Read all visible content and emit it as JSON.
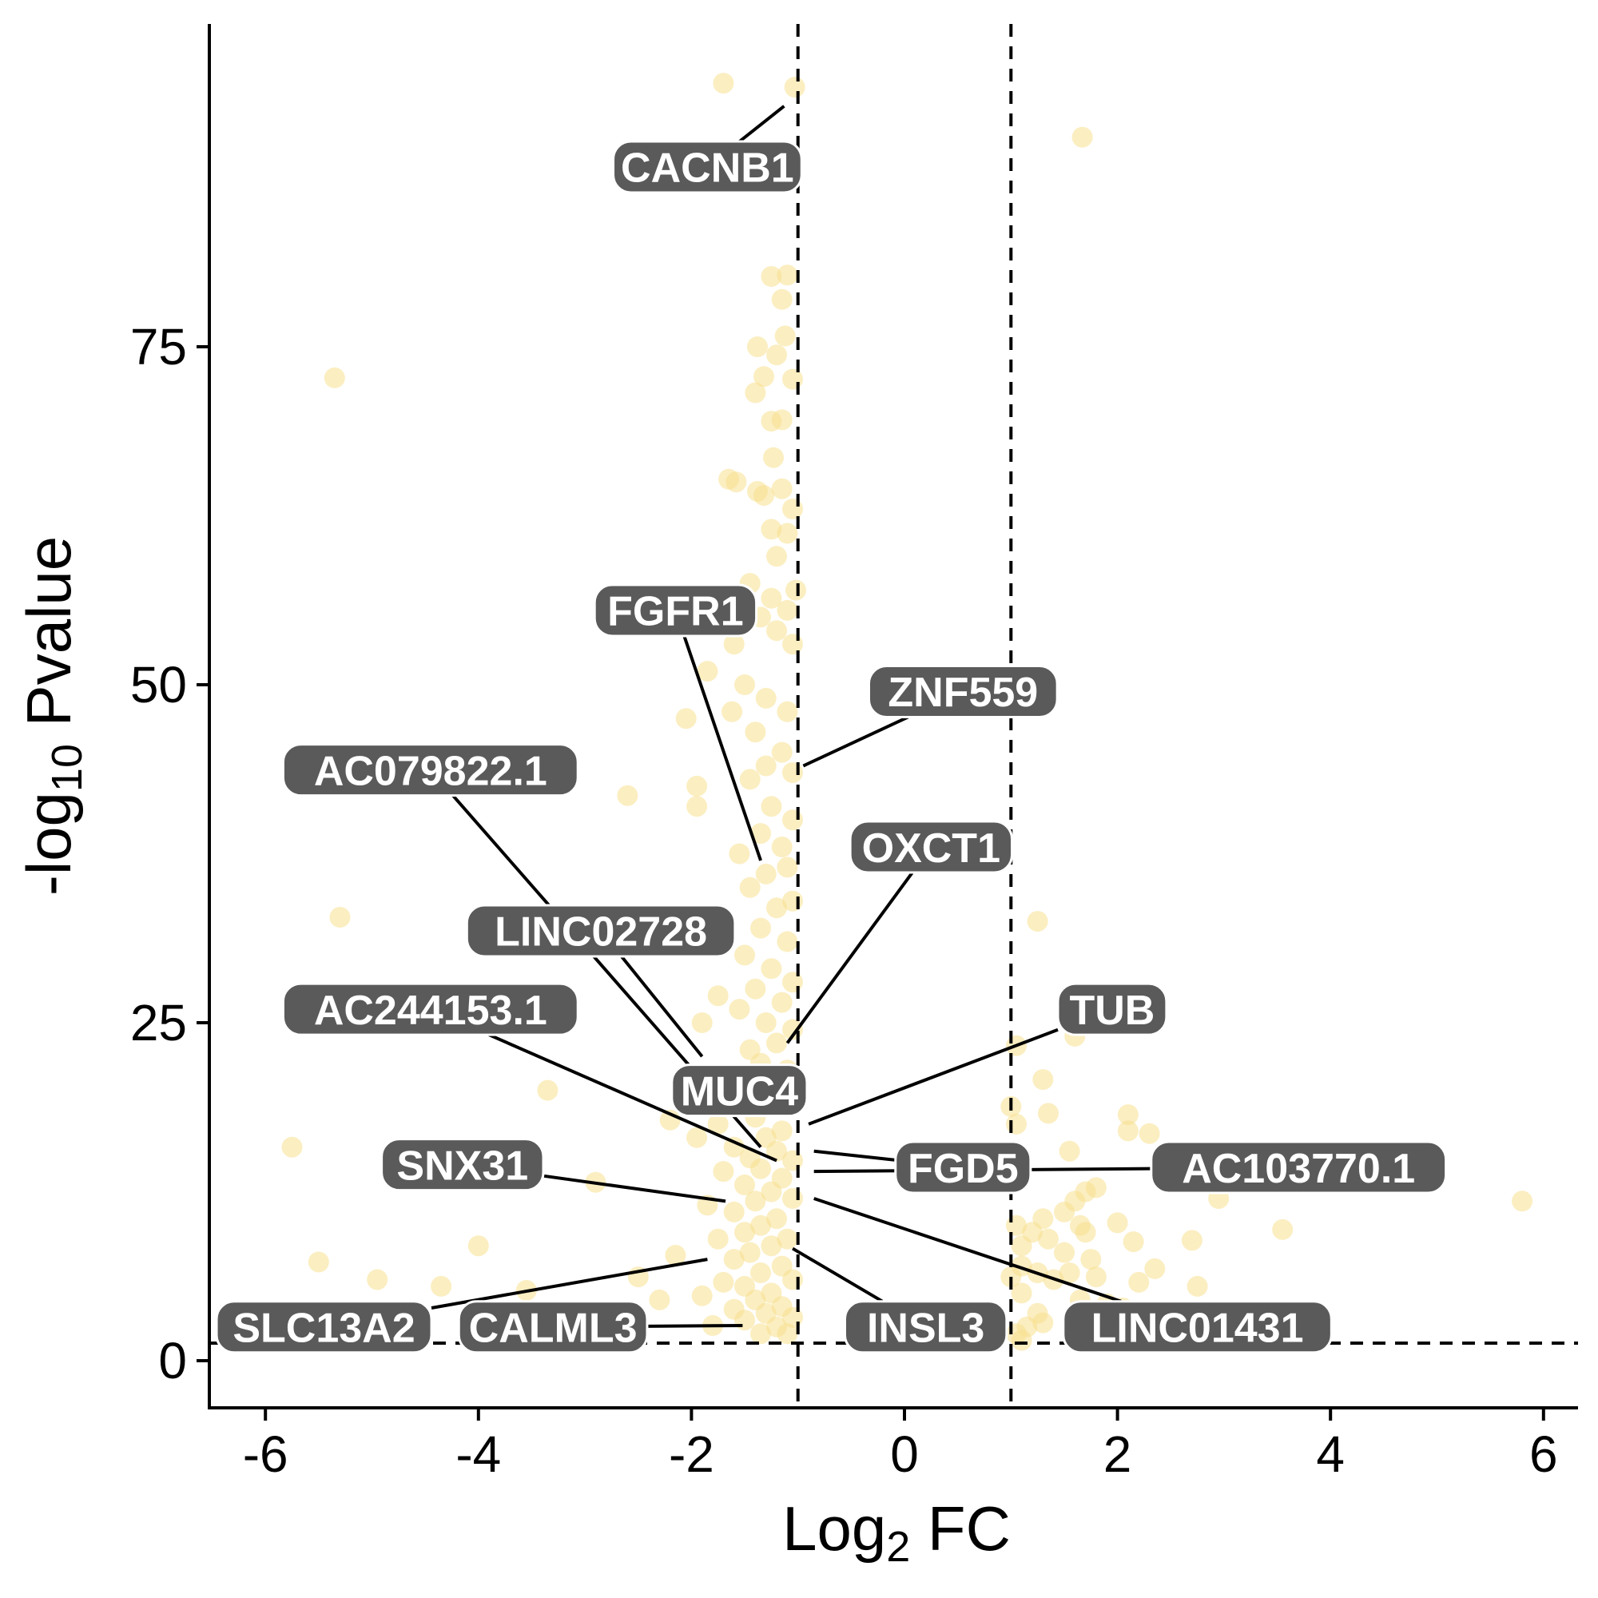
{
  "chart_data": {
    "type": "scatter",
    "title": "",
    "xlabel": {
      "base": "Log",
      "sub": "2",
      "rest": " FC"
    },
    "ylabel": {
      "prefix": "-log",
      "sub": "10",
      "rest": " Pvalue"
    },
    "xlim": [
      -6.5,
      6.4
    ],
    "ylim": [
      -3.5,
      98
    ],
    "xticks": [
      -6,
      -4,
      -2,
      0,
      2,
      4,
      6
    ],
    "yticks": [
      0,
      25,
      50,
      75
    ],
    "point_color": "#f8e08e",
    "label_fill": "#5a5a5a",
    "label_text_color": "#ffffff",
    "grid": false,
    "legend": "none",
    "thresholds": {
      "x": [
        -1,
        1
      ],
      "y": 1.3
    },
    "points": [
      [
        -1.7,
        94.5
      ],
      [
        -1.03,
        94.2
      ],
      [
        1.67,
        90.5
      ],
      [
        -5.35,
        72.7
      ],
      [
        -5.3,
        32.8
      ],
      [
        -1.25,
        80.2
      ],
      [
        -1.1,
        80.3
      ],
      [
        -1.15,
        78.5
      ],
      [
        -1.12,
        75.8
      ],
      [
        -1.38,
        75.0
      ],
      [
        -1.2,
        74.4
      ],
      [
        -1.32,
        72.8
      ],
      [
        -1.05,
        72.6
      ],
      [
        -1.4,
        71.6
      ],
      [
        -1.25,
        69.5
      ],
      [
        -1.15,
        69.6
      ],
      [
        -1.23,
        66.8
      ],
      [
        -1.65,
        65.2
      ],
      [
        -1.58,
        65.0
      ],
      [
        -1.38,
        64.3
      ],
      [
        -1.32,
        64.0
      ],
      [
        -1.15,
        64.5
      ],
      [
        -1.05,
        63.0
      ],
      [
        -1.25,
        61.5
      ],
      [
        -1.1,
        61.2
      ],
      [
        -1.2,
        59.5
      ],
      [
        -1.45,
        57.5
      ],
      [
        -1.02,
        57.0
      ],
      [
        -1.25,
        56.4
      ],
      [
        -1.1,
        55.5
      ],
      [
        -1.35,
        55.0
      ],
      [
        -1.2,
        54.0
      ],
      [
        -1.05,
        53.0
      ],
      [
        -1.6,
        53.0
      ],
      [
        -1.85,
        51.0
      ],
      [
        -1.5,
        50.0
      ],
      [
        -1.3,
        49.0
      ],
      [
        -1.1,
        48.0
      ],
      [
        -1.62,
        48.0
      ],
      [
        -2.05,
        47.5
      ],
      [
        -1.4,
        46.5
      ],
      [
        -1.15,
        45.0
      ],
      [
        -1.3,
        44.0
      ],
      [
        -1.05,
        43.5
      ],
      [
        -1.45,
        43.0
      ],
      [
        -1.95,
        42.5
      ],
      [
        -2.6,
        41.8
      ],
      [
        -1.95,
        41.0
      ],
      [
        -1.25,
        41.0
      ],
      [
        -1.05,
        40.0
      ],
      [
        -1.35,
        39.0
      ],
      [
        -1.15,
        38.0
      ],
      [
        -1.55,
        37.5
      ],
      [
        -1.1,
        36.5
      ],
      [
        -1.3,
        36.0
      ],
      [
        -1.45,
        35.0
      ],
      [
        -1.05,
        34.0
      ],
      [
        -1.2,
        33.5
      ],
      [
        -1.85,
        33.0
      ],
      [
        -1.9,
        31.5
      ],
      [
        -1.35,
        32.0
      ],
      [
        -1.1,
        31.0
      ],
      [
        -1.5,
        30.0
      ],
      [
        -1.25,
        29.0
      ],
      [
        -1.05,
        28.0
      ],
      [
        -1.4,
        27.5
      ],
      [
        -1.75,
        27.0
      ],
      [
        -1.15,
        26.5
      ],
      [
        -3.45,
        26.8
      ],
      [
        -3.7,
        25.2
      ],
      [
        -1.55,
        26.0
      ],
      [
        -1.3,
        25.0
      ],
      [
        -1.05,
        24.5
      ],
      [
        -1.9,
        25.0
      ],
      [
        -1.2,
        23.5
      ],
      [
        -1.45,
        23.0
      ],
      [
        -1.35,
        22.0
      ],
      [
        -1.1,
        21.5
      ],
      [
        -1.6,
        21.0
      ],
      [
        -1.85,
        20.5
      ],
      [
        -1.25,
        20.0
      ],
      [
        -3.35,
        20.0
      ],
      [
        -1.05,
        19.5
      ],
      [
        -1.5,
        19.0
      ],
      [
        -2.2,
        17.8
      ],
      [
        -1.4,
        18.0
      ],
      [
        -1.75,
        17.5
      ],
      [
        -1.15,
        17.0
      ],
      [
        -1.3,
        16.5
      ],
      [
        -1.95,
        16.5
      ],
      [
        -5.75,
        15.8
      ],
      [
        -1.6,
        15.8
      ],
      [
        -1.2,
        15.5
      ],
      [
        -1.45,
        15.0
      ],
      [
        -1.05,
        14.8
      ],
      [
        -1.35,
        14.2
      ],
      [
        -1.7,
        14.0
      ],
      [
        -1.15,
        13.5
      ],
      [
        -2.9,
        13.2
      ],
      [
        -1.5,
        13.0
      ],
      [
        -1.25,
        12.5
      ],
      [
        -1.05,
        12.0
      ],
      [
        -1.4,
        11.8
      ],
      [
        -1.85,
        11.5
      ],
      [
        -1.6,
        11.0
      ],
      [
        -1.2,
        10.5
      ],
      [
        -1.35,
        10.0
      ],
      [
        -1.5,
        9.5
      ],
      [
        -1.1,
        9.0
      ],
      [
        -1.75,
        9.0
      ],
      [
        -4.0,
        8.5
      ],
      [
        -1.25,
        8.5
      ],
      [
        -2.15,
        7.8
      ],
      [
        -1.45,
        8.0
      ],
      [
        -5.5,
        7.3
      ],
      [
        -1.6,
        7.5
      ],
      [
        -1.15,
        7.0
      ],
      [
        -1.35,
        6.5
      ],
      [
        -4.95,
        6.0
      ],
      [
        -2.5,
        6.2
      ],
      [
        -1.05,
        6.0
      ],
      [
        -1.7,
        5.8
      ],
      [
        -4.35,
        5.5
      ],
      [
        -3.55,
        5.2
      ],
      [
        -1.5,
        5.5
      ],
      [
        -1.25,
        5.0
      ],
      [
        -1.9,
        4.8
      ],
      [
        -1.4,
        4.5
      ],
      [
        -1.15,
        4.0
      ],
      [
        -2.3,
        4.5
      ],
      [
        -1.6,
        3.8
      ],
      [
        -1.3,
        3.5
      ],
      [
        -1.05,
        3.2
      ],
      [
        -1.5,
        3.0
      ],
      [
        -1.2,
        2.5
      ],
      [
        -1.35,
        2.0
      ],
      [
        -1.1,
        2.0
      ],
      [
        -3.3,
        2.5
      ],
      [
        -2.75,
        2.8
      ],
      [
        -1.8,
        2.6
      ],
      [
        1.25,
        32.5
      ],
      [
        1.05,
        23.3
      ],
      [
        1.3,
        20.8
      ],
      [
        1.0,
        18.8
      ],
      [
        1.35,
        18.3
      ],
      [
        1.05,
        17.5
      ],
      [
        1.6,
        24.0
      ],
      [
        1.55,
        15.5
      ],
      [
        2.1,
        18.2
      ],
      [
        2.1,
        17.0
      ],
      [
        2.3,
        16.8
      ],
      [
        1.7,
        12.5
      ],
      [
        1.8,
        12.8
      ],
      [
        2.95,
        12.0
      ],
      [
        1.6,
        11.8
      ],
      [
        1.5,
        11.0
      ],
      [
        1.3,
        10.5
      ],
      [
        1.65,
        10.0
      ],
      [
        1.2,
        9.5
      ],
      [
        1.05,
        10.0
      ],
      [
        2.0,
        10.2
      ],
      [
        1.7,
        9.5
      ],
      [
        1.35,
        9.0
      ],
      [
        1.1,
        8.5
      ],
      [
        2.15,
        8.8
      ],
      [
        1.5,
        8.0
      ],
      [
        3.55,
        9.7
      ],
      [
        2.7,
        8.9
      ],
      [
        1.75,
        7.5
      ],
      [
        1.1,
        7.0
      ],
      [
        1.25,
        6.5
      ],
      [
        1.55,
        6.5
      ],
      [
        1.8,
        6.2
      ],
      [
        2.35,
        6.8
      ],
      [
        1.0,
        6.2
      ],
      [
        1.4,
        6.0
      ],
      [
        2.2,
        5.8
      ],
      [
        2.75,
        5.5
      ],
      [
        1.1,
        5.0
      ],
      [
        1.65,
        4.5
      ],
      [
        1.9,
        4.2
      ],
      [
        2.05,
        3.9
      ],
      [
        1.25,
        3.5
      ],
      [
        1.15,
        2.5
      ],
      [
        1.05,
        2.0
      ],
      [
        1.1,
        1.5
      ],
      [
        1.3,
        2.8
      ],
      [
        5.8,
        11.8
      ]
    ],
    "labels": [
      {
        "text": "CACNB1",
        "x": -1.85,
        "y": 88.3,
        "px": -1.13,
        "py": 92.8
      },
      {
        "text": "FGFR1",
        "x": -2.15,
        "y": 55.5,
        "px": -1.35,
        "py": 37.0
      },
      {
        "text": "ZNF559",
        "x": 0.55,
        "y": 49.5,
        "px": -0.95,
        "py": 44.0
      },
      {
        "text": "AC079822.1",
        "x": -4.45,
        "y": 43.7,
        "px": -1.35,
        "py": 15.8
      },
      {
        "text": "OXCT1",
        "x": 0.25,
        "y": 38.0,
        "px": -1.1,
        "py": 23.5
      },
      {
        "text": "LINC02728",
        "x": -2.85,
        "y": 31.8,
        "px": -1.9,
        "py": 22.5
      },
      {
        "text": "AC244153.1",
        "x": -4.45,
        "y": 26.0,
        "px": -1.2,
        "py": 14.8
      },
      {
        "text": "TUB",
        "x": 1.95,
        "y": 26.0,
        "px": -0.9,
        "py": 17.5
      },
      {
        "text": "MUC4",
        "x": -1.55,
        "y": 20.0,
        "px": null,
        "py": null
      },
      {
        "text": "SNX31",
        "x": -4.15,
        "y": 14.5,
        "px": -1.68,
        "py": 11.8
      },
      {
        "text": "FGD5",
        "x": 0.55,
        "y": 14.3,
        "px": -0.85,
        "py": 15.5
      },
      {
        "text": "AC103770.1",
        "x": 3.7,
        "y": 14.3,
        "px": -0.85,
        "py": 14.0
      },
      {
        "text": "SLC13A2",
        "x": -5.45,
        "y": 2.5,
        "px": -1.85,
        "py": 7.5
      },
      {
        "text": "CALML3",
        "x": -3.3,
        "y": 2.5,
        "px": -1.52,
        "py": 2.6
      },
      {
        "text": "INSL3",
        "x": 0.2,
        "y": 2.5,
        "px": -1.05,
        "py": 8.3
      },
      {
        "text": "LINC01431",
        "x": 2.75,
        "y": 2.5,
        "px": -0.85,
        "py": 12.0
      }
    ]
  }
}
